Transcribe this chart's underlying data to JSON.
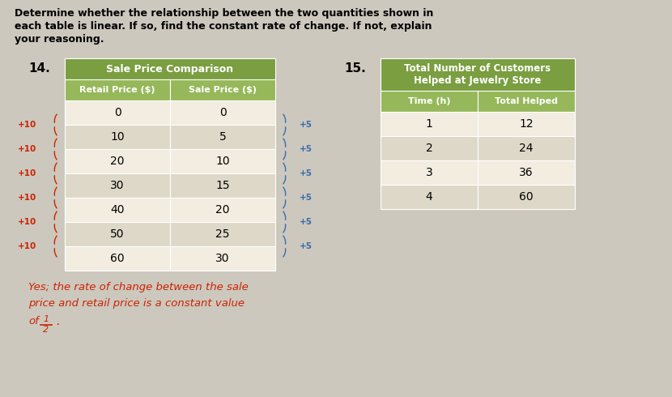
{
  "bg_color": "#ccc8be",
  "table_area_bg": "#e8e4da",
  "header_text_line1": "Determine whether the relationship between the two quantities shown in",
  "header_text_line2": "each table is linear. If so, find the constant rate of change. If not, explain",
  "header_text_line3": "your reasoning.",
  "problem14_num": "14.",
  "problem15_num": "15.",
  "table1_title": "Sale Price Comparison",
  "table1_col1": "Retail Price ($)",
  "table1_col2": "Sale Price ($)",
  "table1_data": [
    [
      0,
      0
    ],
    [
      10,
      5
    ],
    [
      20,
      10
    ],
    [
      30,
      15
    ],
    [
      40,
      20
    ],
    [
      50,
      25
    ],
    [
      60,
      30
    ]
  ],
  "table1_header_color": "#7a9e40",
  "table1_subheader_color": "#96b85a",
  "table1_row_color1": "#f2ede0",
  "table1_row_color2": "#ddd8c8",
  "table2_title_line1": "Total Number of Customers",
  "table2_title_line2": "Helped at Jewelry Store",
  "table2_col1": "Time (h)",
  "table2_col2": "Total Helped",
  "table2_data": [
    [
      1,
      12
    ],
    [
      2,
      24
    ],
    [
      3,
      36
    ],
    [
      4,
      60
    ]
  ],
  "table2_header_color": "#7a9e40",
  "table2_subheader_color": "#96b85a",
  "table2_row_color1": "#f2ede0",
  "table2_row_color2": "#ddd8c8",
  "left_annotations": [
    "+10",
    "+10",
    "+10",
    "+10",
    "+10",
    "+10"
  ],
  "right_annotations": [
    "+5",
    "+5",
    "+5",
    "+5",
    "+5",
    "+5"
  ],
  "left_annot_color": "#cc2200",
  "right_annot_color": "#3a6baa",
  "answer_color": "#cc2200",
  "answer_line1": "Yes; the rate of change between the sale",
  "answer_line2": "price and retail price is a constant value",
  "answer_frac_num": "1",
  "answer_frac_den": "2"
}
